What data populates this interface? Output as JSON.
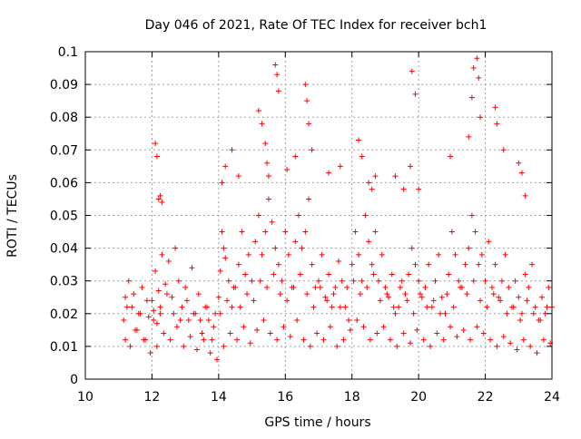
{
  "chart_data": {
    "type": "scatter",
    "title": "Day 046 of 2021, Rate Of TEC Index for receiver bch1",
    "xlabel": "GPS time / hours",
    "ylabel": "ROTI / TECUs",
    "xlim": [
      10,
      24
    ],
    "ylim": [
      0,
      0.1
    ],
    "x_ticks": [
      10,
      12,
      14,
      16,
      18,
      20,
      22,
      24
    ],
    "x_tick_labels": [
      "10",
      "12",
      "14",
      "16",
      "18",
      "20",
      "22",
      "24"
    ],
    "y_ticks": [
      0,
      0.01,
      0.02,
      0.03,
      0.04,
      0.05,
      0.06,
      0.07,
      0.08,
      0.09,
      0.1
    ],
    "y_tick_labels": [
      "0",
      "0.01",
      "0.02",
      "0.03",
      "0.04",
      "0.05",
      "0.06",
      "0.07",
      "0.08",
      "0.09",
      "0.1"
    ],
    "grid": true,
    "marker": "+",
    "point_color": "#ff0000",
    "series": [
      {
        "x": [
          11.15,
          11.2,
          11.3,
          11.4,
          11.5,
          11.6,
          11.7,
          11.8,
          11.9,
          12.0,
          12.05,
          12.1,
          12.15,
          12.2,
          12.25,
          12.3,
          12.4,
          12.5,
          12.6,
          12.7,
          12.8,
          12.9,
          13.0,
          13.1,
          13.2,
          13.3,
          13.4,
          13.5,
          13.6,
          13.7,
          13.8,
          13.9,
          14.0,
          14.05,
          14.1,
          14.15,
          14.2,
          14.3,
          14.4,
          14.5,
          14.6,
          14.7,
          14.8,
          14.9,
          15.0,
          15.1,
          15.2,
          15.3,
          15.4,
          15.5,
          15.6,
          15.7,
          15.8,
          15.9,
          16.0,
          16.1,
          16.2,
          16.3,
          16.4,
          16.5,
          16.6,
          16.7,
          16.8,
          16.9,
          17.0,
          17.1,
          17.2,
          17.3,
          17.4,
          17.5,
          17.6,
          17.7,
          17.8,
          17.9,
          18.0,
          18.1,
          18.2,
          18.3,
          18.4,
          18.5,
          18.6,
          18.7,
          18.8,
          18.9,
          19.0,
          19.1,
          19.2,
          19.3,
          19.4,
          19.5,
          19.6,
          19.7,
          19.8,
          19.9,
          20.0,
          20.1,
          20.2,
          20.3,
          20.4,
          20.5,
          20.6,
          20.7,
          20.8,
          20.9,
          21.0,
          21.1,
          21.2,
          21.3,
          21.4,
          21.5,
          21.6,
          21.7,
          21.8,
          21.9,
          22.0,
          22.1,
          22.2,
          22.3,
          22.4,
          22.5,
          22.6,
          22.7,
          22.8,
          22.9,
          23.0,
          23.1,
          23.2,
          23.3,
          23.4,
          23.5,
          23.6,
          23.7,
          23.8,
          23.9,
          24.0,
          11.2,
          11.35,
          11.55,
          11.75,
          11.95,
          12.15,
          12.35,
          12.55,
          12.75,
          12.95,
          13.15,
          13.35,
          13.55,
          13.75,
          13.95,
          14.15,
          14.35,
          14.55,
          14.75,
          14.95,
          15.15,
          15.35,
          15.55,
          15.75,
          15.95,
          16.15,
          16.35,
          16.55,
          16.75,
          16.95,
          17.15,
          17.35,
          17.55,
          17.75,
          17.95,
          18.15,
          18.35,
          18.55,
          18.75,
          18.95,
          19.15,
          19.35,
          19.55,
          19.75,
          19.95,
          20.15,
          20.35,
          20.55,
          20.75,
          20.95,
          21.15,
          21.35,
          21.55,
          21.75,
          21.95,
          22.15,
          22.35,
          22.55,
          22.75,
          22.95,
          23.15,
          23.35,
          23.55,
          23.75,
          23.95,
          11.25,
          11.45,
          11.65,
          11.85,
          12.05,
          12.25,
          12.45,
          12.65,
          12.85,
          13.05,
          13.25,
          13.45,
          13.65,
          13.85,
          14.05,
          14.25,
          14.45,
          14.65,
          14.85,
          15.05,
          15.25,
          15.45,
          15.65,
          15.85,
          16.05,
          16.25,
          16.45,
          16.65,
          16.85,
          17.05,
          17.25,
          17.45,
          17.65,
          17.85,
          18.05,
          18.25,
          18.45,
          18.65,
          18.85,
          19.05,
          19.25,
          19.45,
          19.65,
          19.85,
          20.05,
          20.25,
          20.45,
          20.65,
          20.85,
          21.05,
          21.25,
          21.45,
          21.65,
          21.85,
          22.05,
          22.25,
          22.45,
          22.65,
          22.85,
          23.05,
          23.25,
          23.45,
          23.65,
          23.85,
          12.1,
          12.15,
          12.2,
          12.25,
          12.3,
          14.1,
          14.2,
          14.4,
          14.6,
          15.2,
          15.3,
          15.4,
          15.45,
          15.5,
          15.7,
          15.75,
          15.8,
          16.05,
          16.3,
          16.6,
          16.65,
          16.7,
          16.8,
          17.3,
          17.65,
          18.2,
          18.3,
          18.5,
          18.6,
          18.7,
          19.3,
          19.55,
          19.75,
          19.8,
          19.9,
          20.0,
          20.95,
          21.5,
          21.6,
          21.65,
          21.75,
          21.8,
          21.85,
          22.3,
          22.35,
          22.55,
          23.0,
          23.1,
          23.2
        ],
        "y": [
          0.018,
          0.025,
          0.03,
          0.022,
          0.015,
          0.02,
          0.028,
          0.012,
          0.019,
          0.024,
          0.021,
          0.033,
          0.017,
          0.027,
          0.02,
          0.038,
          0.029,
          0.036,
          0.025,
          0.04,
          0.03,
          0.022,
          0.028,
          0.018,
          0.034,
          0.02,
          0.026,
          0.014,
          0.022,
          0.018,
          0.012,
          0.02,
          0.025,
          0.033,
          0.045,
          0.04,
          0.037,
          0.03,
          0.022,
          0.028,
          0.035,
          0.045,
          0.032,
          0.038,
          0.03,
          0.042,
          0.05,
          0.038,
          0.045,
          0.055,
          0.048,
          0.04,
          0.035,
          0.03,
          0.045,
          0.038,
          0.028,
          0.042,
          0.05,
          0.04,
          0.045,
          0.055,
          0.035,
          0.028,
          0.03,
          0.038,
          0.025,
          0.032,
          0.022,
          0.028,
          0.036,
          0.03,
          0.022,
          0.018,
          0.035,
          0.045,
          0.038,
          0.03,
          0.05,
          0.042,
          0.035,
          0.045,
          0.03,
          0.038,
          0.028,
          0.025,
          0.032,
          0.02,
          0.022,
          0.03,
          0.026,
          0.032,
          0.04,
          0.035,
          0.03,
          0.025,
          0.028,
          0.035,
          0.022,
          0.03,
          0.038,
          0.025,
          0.02,
          0.032,
          0.045,
          0.038,
          0.03,
          0.028,
          0.035,
          0.04,
          0.05,
          0.045,
          0.035,
          0.038,
          0.03,
          0.042,
          0.028,
          0.035,
          0.025,
          0.03,
          0.038,
          0.028,
          0.022,
          0.03,
          0.025,
          0.02,
          0.032,
          0.028,
          0.035,
          0.022,
          0.018,
          0.025,
          0.02,
          0.028,
          0.022,
          0.012,
          0.01,
          0.015,
          0.012,
          0.008,
          0.01,
          0.014,
          0.012,
          0.016,
          0.01,
          0.013,
          0.009,
          0.012,
          0.008,
          0.006,
          0.01,
          0.014,
          0.012,
          0.016,
          0.011,
          0.015,
          0.018,
          0.014,
          0.012,
          0.016,
          0.013,
          0.018,
          0.012,
          0.01,
          0.014,
          0.012,
          0.016,
          0.01,
          0.012,
          0.015,
          0.018,
          0.016,
          0.012,
          0.014,
          0.016,
          0.012,
          0.01,
          0.014,
          0.011,
          0.015,
          0.012,
          0.01,
          0.014,
          0.012,
          0.016,
          0.013,
          0.015,
          0.012,
          0.016,
          0.014,
          0.012,
          0.01,
          0.013,
          0.011,
          0.009,
          0.012,
          0.01,
          0.008,
          0.012,
          0.011,
          0.022,
          0.026,
          0.02,
          0.024,
          0.018,
          0.022,
          0.026,
          0.02,
          0.018,
          0.024,
          0.02,
          0.018,
          0.022,
          0.016,
          0.02,
          0.024,
          0.028,
          0.022,
          0.026,
          0.024,
          0.03,
          0.028,
          0.032,
          0.026,
          0.024,
          0.028,
          0.032,
          0.026,
          0.022,
          0.028,
          0.024,
          0.026,
          0.022,
          0.028,
          0.03,
          0.026,
          0.028,
          0.032,
          0.024,
          0.026,
          0.022,
          0.028,
          0.024,
          0.02,
          0.026,
          0.022,
          0.024,
          0.02,
          0.026,
          0.022,
          0.028,
          0.026,
          0.03,
          0.024,
          0.022,
          0.026,
          0.024,
          0.02,
          0.022,
          0.018,
          0.024,
          0.02,
          0.018,
          0.022,
          0.072,
          0.068,
          0.055,
          0.056,
          0.054,
          0.06,
          0.065,
          0.07,
          0.062,
          0.082,
          0.078,
          0.072,
          0.066,
          0.062,
          0.096,
          0.093,
          0.088,
          0.064,
          0.068,
          0.09,
          0.085,
          0.078,
          0.07,
          0.063,
          0.065,
          0.073,
          0.068,
          0.06,
          0.058,
          0.062,
          0.062,
          0.058,
          0.065,
          0.094,
          0.087,
          0.058,
          0.068,
          0.074,
          0.086,
          0.095,
          0.098,
          0.092,
          0.08,
          0.083,
          0.078,
          0.07,
          0.066,
          0.063,
          0.056
        ]
      }
    ]
  }
}
